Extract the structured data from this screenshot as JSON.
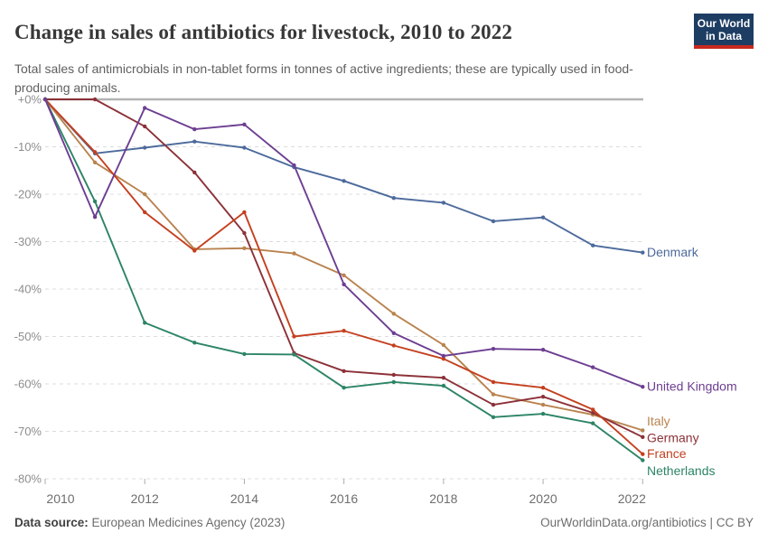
{
  "header": {
    "title": "Change in sales of antibiotics for livestock, 2010 to 2022",
    "logo_line1": "Our World",
    "logo_line2": "in Data"
  },
  "subtitle": "Total sales of antimicrobials in non-tablet forms in tonnes of active ingredients; these are typically used in food-producing animals.",
  "footer": {
    "source_label": "Data source:",
    "source_text": " European Medicines Agency (2023)",
    "right_text": "OurWorldinData.org/antibiotics | CC BY"
  },
  "chart_data": {
    "type": "line",
    "title": "Change in sales of antibiotics for livestock, 2010 to 2022",
    "xlabel": "",
    "ylabel": "",
    "unit": "% change vs 2010",
    "xlim": [
      2010,
      2022
    ],
    "ylim": [
      -80,
      0
    ],
    "grid": "horizontal-dashed",
    "legend_position": "end-of-line-labels",
    "x": [
      2010,
      2011,
      2012,
      2013,
      2014,
      2015,
      2016,
      2017,
      2018,
      2019,
      2020,
      2021,
      2022
    ],
    "x_ticks": [
      {
        "label": "2010",
        "year": 2010
      },
      {
        "label": "2012",
        "year": 2012
      },
      {
        "label": "2014",
        "year": 2014
      },
      {
        "label": "2016",
        "year": 2016
      },
      {
        "label": "2018",
        "year": 2018
      },
      {
        "label": "2020",
        "year": 2020
      },
      {
        "label": "2022",
        "year": 2022
      }
    ],
    "y_ticks": [
      {
        "label": "+0%",
        "value": 0
      },
      {
        "label": "-10%",
        "value": -10
      },
      {
        "label": "-20%",
        "value": -20
      },
      {
        "label": "-30%",
        "value": -30
      },
      {
        "label": "-40%",
        "value": -40
      },
      {
        "label": "-50%",
        "value": -50
      },
      {
        "label": "-60%",
        "value": -60
      },
      {
        "label": "-70%",
        "value": -70
      },
      {
        "label": "-80%",
        "value": -80
      }
    ],
    "series": [
      {
        "name": "Denmark",
        "color": "#4C6A9C",
        "label_dy": 0,
        "values": [
          0,
          -11.4,
          -10.2,
          -8.9,
          -10.2,
          -14.3,
          -17.2,
          -20.8,
          -21.8,
          -25.7,
          -24.9,
          -30.8,
          -32.3
        ]
      },
      {
        "name": "Italy",
        "color": "#B9834F",
        "label_dy": -10,
        "values": [
          0,
          -13.3,
          -20.0,
          -31.6,
          -31.4,
          -32.5,
          -37.1,
          -45.2,
          -51.8,
          -62.2,
          -64.4,
          -66.5,
          -69.8
        ]
      },
      {
        "name": "Germany",
        "color": "#8C3138",
        "label_dy": 1,
        "values": [
          0,
          0,
          -5.7,
          -15.4,
          -28.2,
          -53.5,
          -57.3,
          -58.1,
          -58.7,
          -64.4,
          -62.7,
          -66.1,
          -71.2
        ]
      },
      {
        "name": "France",
        "color": "#C4401F",
        "label_dy": 0,
        "values": [
          0,
          -11.1,
          -23.8,
          -31.9,
          -23.8,
          -50.0,
          -48.8,
          -51.9,
          -54.7,
          -59.6,
          -60.8,
          -65.4,
          -74.8
        ]
      },
      {
        "name": "Netherlands",
        "color": "#2C8465",
        "label_dy": 12,
        "values": [
          0,
          -21.5,
          -47.1,
          -51.3,
          -53.7,
          -53.8,
          -60.8,
          -59.6,
          -60.4,
          -67.0,
          -66.3,
          -68.3,
          -76.1
        ]
      },
      {
        "name": "United Kingdom",
        "color": "#6D3E91",
        "label_dy": 0,
        "values": [
          0,
          -24.8,
          -1.8,
          -6.3,
          -5.3,
          -13.9,
          -39.0,
          -49.3,
          -54.1,
          -52.6,
          -52.8,
          -56.5,
          -60.6
        ]
      }
    ]
  },
  "style": {
    "grid_color": "#dcdcdc",
    "zero_line_color": "#b3b3b3",
    "y_tick_label_color": "#8d8d8d",
    "x_tick_label_color": "#6e6e6e",
    "tick_mark_color": "#adadad"
  }
}
